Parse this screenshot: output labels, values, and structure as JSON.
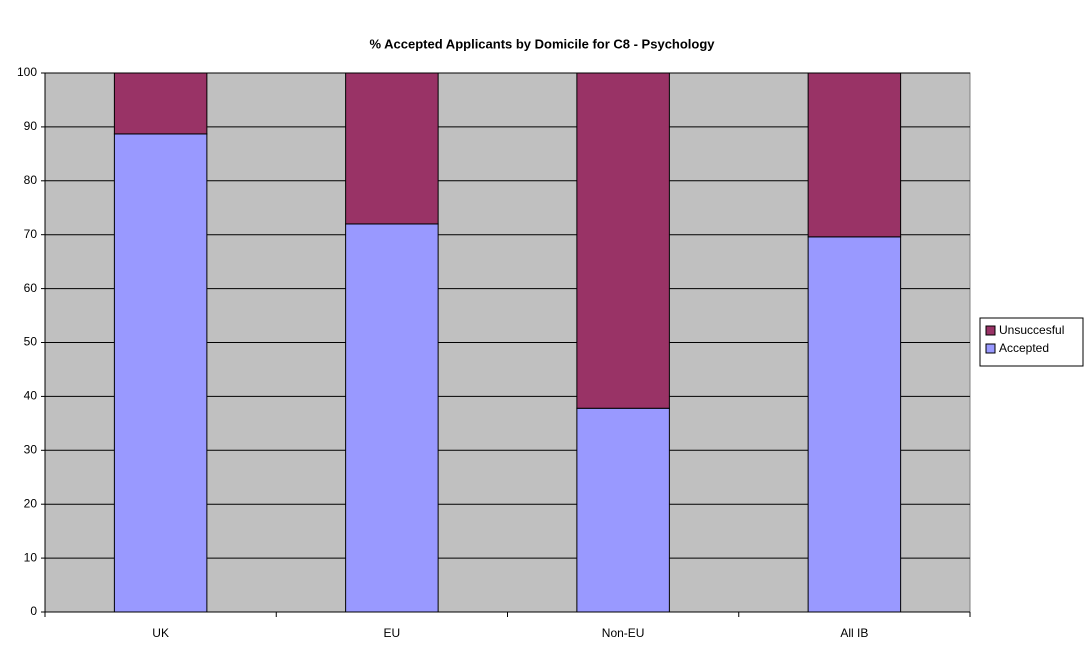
{
  "chart_data": {
    "type": "stacked_bar",
    "title": "% Accepted Applicants by Domicile for C8 - Psychology",
    "categories": [
      "UK",
      "EU",
      "Non-EU",
      "All IB"
    ],
    "series": [
      {
        "name": "Accepted",
        "color": "#9999ff",
        "values": [
          88.7,
          72.0,
          37.8,
          69.6
        ]
      },
      {
        "name": "Unsuccesful",
        "color": "#993366",
        "values": [
          11.3,
          28.0,
          62.2,
          30.4
        ]
      }
    ],
    "ylim": [
      0,
      100
    ],
    "yticks": [
      0,
      10,
      20,
      30,
      40,
      50,
      60,
      70,
      80,
      90,
      100
    ],
    "grid": true,
    "legend": "right"
  }
}
